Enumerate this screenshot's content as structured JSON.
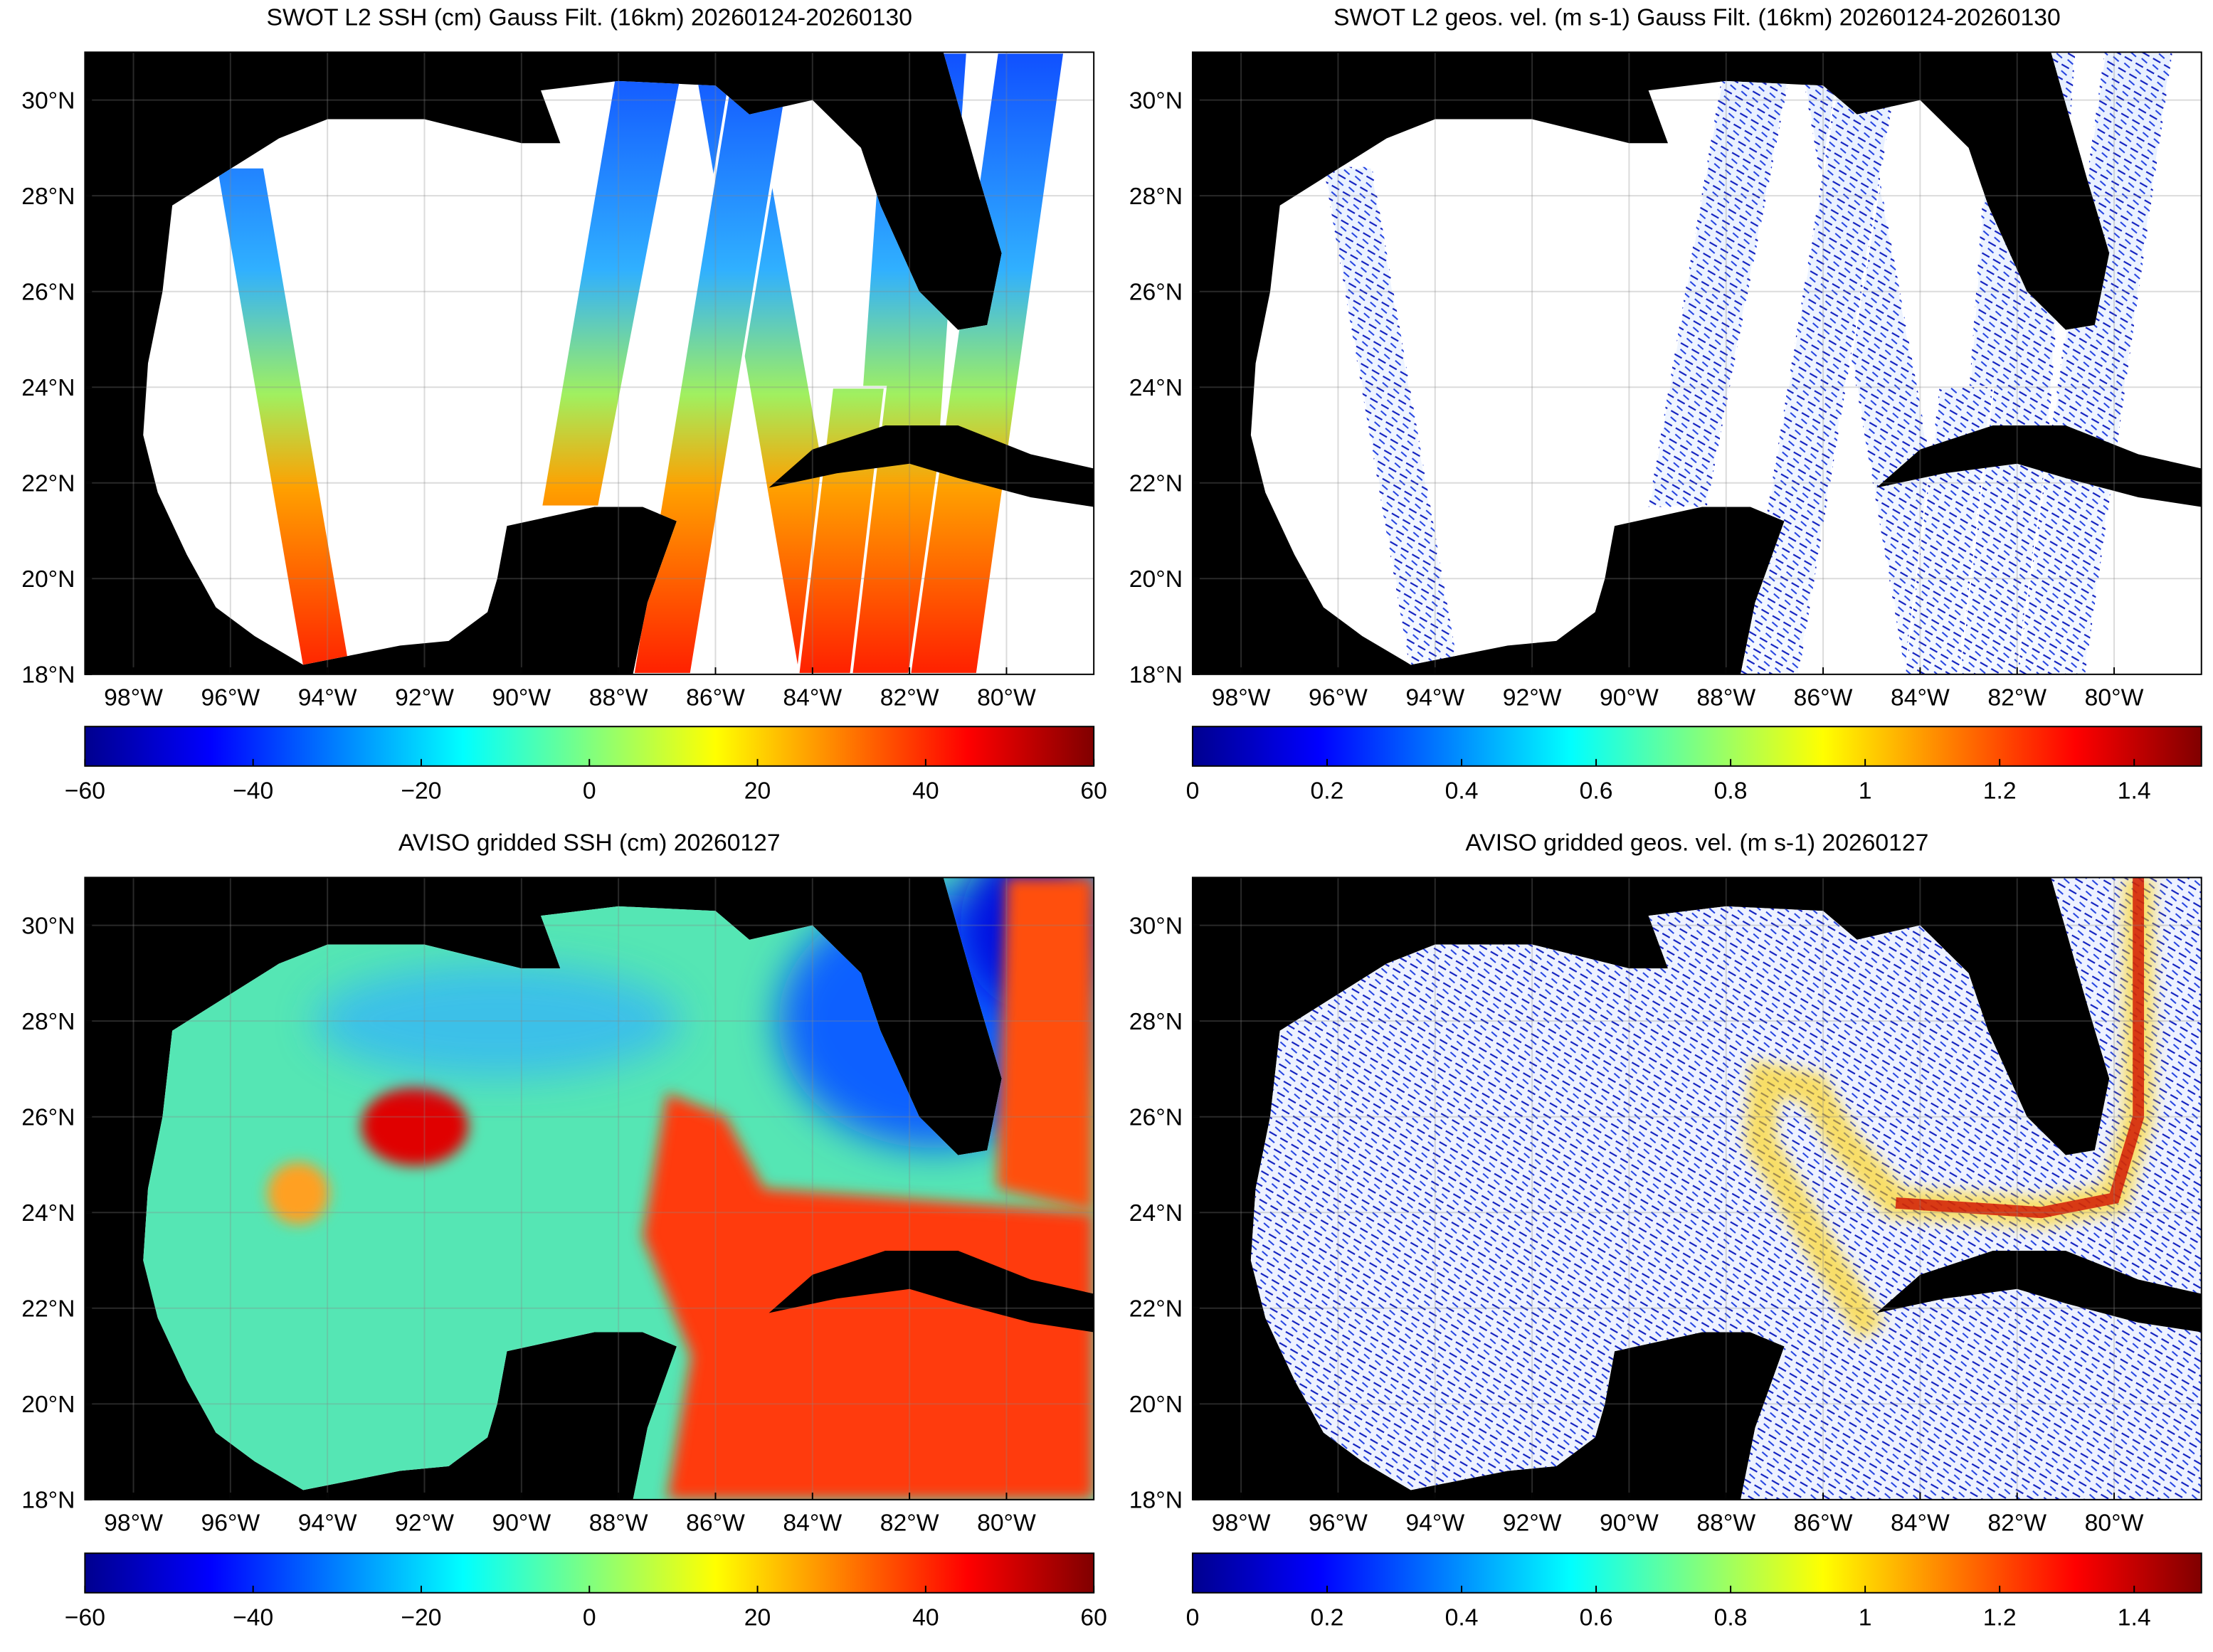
{
  "panels": [
    {
      "title": "SWOT L2 SSH (cm) Gauss Filt. (16km) 20260124-20260130",
      "map": {
        "lonlim": [
          -99,
          -78.2
        ],
        "latlim": [
          18,
          31
        ],
        "xticks": [
          {
            "value": -98,
            "label": "98°W"
          },
          {
            "value": -96,
            "label": "96°W"
          },
          {
            "value": -94,
            "label": "94°W"
          },
          {
            "value": -92,
            "label": "92°W"
          },
          {
            "value": -90,
            "label": "90°W"
          },
          {
            "value": -88,
            "label": "88°W"
          },
          {
            "value": -86,
            "label": "86°W"
          },
          {
            "value": -84,
            "label": "84°W"
          },
          {
            "value": -82,
            "label": "82°W"
          },
          {
            "value": -80,
            "label": "80°W"
          }
        ],
        "yticks": [
          {
            "value": 18,
            "label": "18°N"
          },
          {
            "value": 20,
            "label": "20°N"
          },
          {
            "value": 22,
            "label": "22°N"
          },
          {
            "value": 24,
            "label": "24°N"
          },
          {
            "value": 26,
            "label": "26°N"
          },
          {
            "value": 28,
            "label": "28°N"
          },
          {
            "value": 30,
            "label": "30°N"
          }
        ]
      },
      "colorbar": {
        "range": [
          -60,
          60
        ],
        "ticks": [
          {
            "value": -60,
            "label": "−60"
          },
          {
            "value": -40,
            "label": "−40"
          },
          {
            "value": -20,
            "label": "−20"
          },
          0,
          20,
          40,
          60
        ]
      }
    },
    {
      "title": "SWOT L2 geos. vel. (m s-1) Gauss Filt. (16km) 20260124-20260130",
      "map": {
        "lonlim": [
          -99,
          -78.2
        ],
        "latlim": [
          18,
          31
        ],
        "xticks": [
          {
            "value": -98,
            "label": "98°W"
          },
          {
            "value": -96,
            "label": "96°W"
          },
          {
            "value": -94,
            "label": "94°W"
          },
          {
            "value": -92,
            "label": "92°W"
          },
          {
            "value": -90,
            "label": "90°W"
          },
          {
            "value": -88,
            "label": "88°W"
          },
          {
            "value": -86,
            "label": "86°W"
          },
          {
            "value": -84,
            "label": "84°W"
          },
          {
            "value": -82,
            "label": "82°W"
          },
          {
            "value": -80,
            "label": "80°W"
          }
        ],
        "yticks": [
          {
            "value": 18,
            "label": "18°N"
          },
          {
            "value": 20,
            "label": "20°N"
          },
          {
            "value": 22,
            "label": "22°N"
          },
          {
            "value": 24,
            "label": "24°N"
          },
          {
            "value": 26,
            "label": "26°N"
          },
          {
            "value": 28,
            "label": "28°N"
          },
          {
            "value": 30,
            "label": "30°N"
          }
        ]
      },
      "colorbar": {
        "range": [
          0,
          1.5
        ],
        "ticks": [
          0,
          0.2,
          0.4,
          0.6,
          0.8,
          1,
          1.2,
          1.4
        ]
      }
    },
    {
      "title": "AVISO gridded SSH (cm) 20260127",
      "map": {
        "lonlim": [
          -99,
          -78.2
        ],
        "latlim": [
          18,
          31
        ],
        "xticks": [
          {
            "value": -98,
            "label": "98°W"
          },
          {
            "value": -96,
            "label": "96°W"
          },
          {
            "value": -94,
            "label": "94°W"
          },
          {
            "value": -92,
            "label": "92°W"
          },
          {
            "value": -90,
            "label": "90°W"
          },
          {
            "value": -88,
            "label": "88°W"
          },
          {
            "value": -86,
            "label": "86°W"
          },
          {
            "value": -84,
            "label": "84°W"
          },
          {
            "value": -82,
            "label": "82°W"
          },
          {
            "value": -80,
            "label": "80°W"
          }
        ],
        "yticks": [
          {
            "value": 18,
            "label": "18°N"
          },
          {
            "value": 20,
            "label": "20°N"
          },
          {
            "value": 22,
            "label": "22°N"
          },
          {
            "value": 24,
            "label": "24°N"
          },
          {
            "value": 26,
            "label": "26°N"
          },
          {
            "value": 28,
            "label": "28°N"
          },
          {
            "value": 30,
            "label": "30°N"
          }
        ]
      },
      "colorbar": {
        "range": [
          -60,
          60
        ],
        "ticks": [
          {
            "value": -60,
            "label": "−60"
          },
          {
            "value": -40,
            "label": "−40"
          },
          {
            "value": -20,
            "label": "−20"
          },
          0,
          20,
          40,
          60
        ]
      }
    },
    {
      "title": "AVISO gridded geos. vel. (m s-1)  20260127",
      "map": {
        "lonlim": [
          -99,
          -78.2
        ],
        "latlim": [
          18,
          31
        ],
        "xticks": [
          {
            "value": -98,
            "label": "98°W"
          },
          {
            "value": -96,
            "label": "96°W"
          },
          {
            "value": -94,
            "label": "94°W"
          },
          {
            "value": -92,
            "label": "92°W"
          },
          {
            "value": -90,
            "label": "90°W"
          },
          {
            "value": -88,
            "label": "88°W"
          },
          {
            "value": -86,
            "label": "86°W"
          },
          {
            "value": -84,
            "label": "84°W"
          },
          {
            "value": -82,
            "label": "82°W"
          },
          {
            "value": -80,
            "label": "80°W"
          }
        ],
        "yticks": [
          {
            "value": 18,
            "label": "18°N"
          },
          {
            "value": 20,
            "label": "20°N"
          },
          {
            "value": 22,
            "label": "22°N"
          },
          {
            "value": 24,
            "label": "24°N"
          },
          {
            "value": 26,
            "label": "26°N"
          },
          {
            "value": 28,
            "label": "28°N"
          },
          {
            "value": 30,
            "label": "30°N"
          }
        ]
      },
      "colorbar": {
        "range": [
          0,
          1.5
        ],
        "ticks": [
          0,
          0.2,
          0.4,
          0.6,
          0.8,
          1,
          1.2,
          1.4
        ]
      }
    }
  ]
}
